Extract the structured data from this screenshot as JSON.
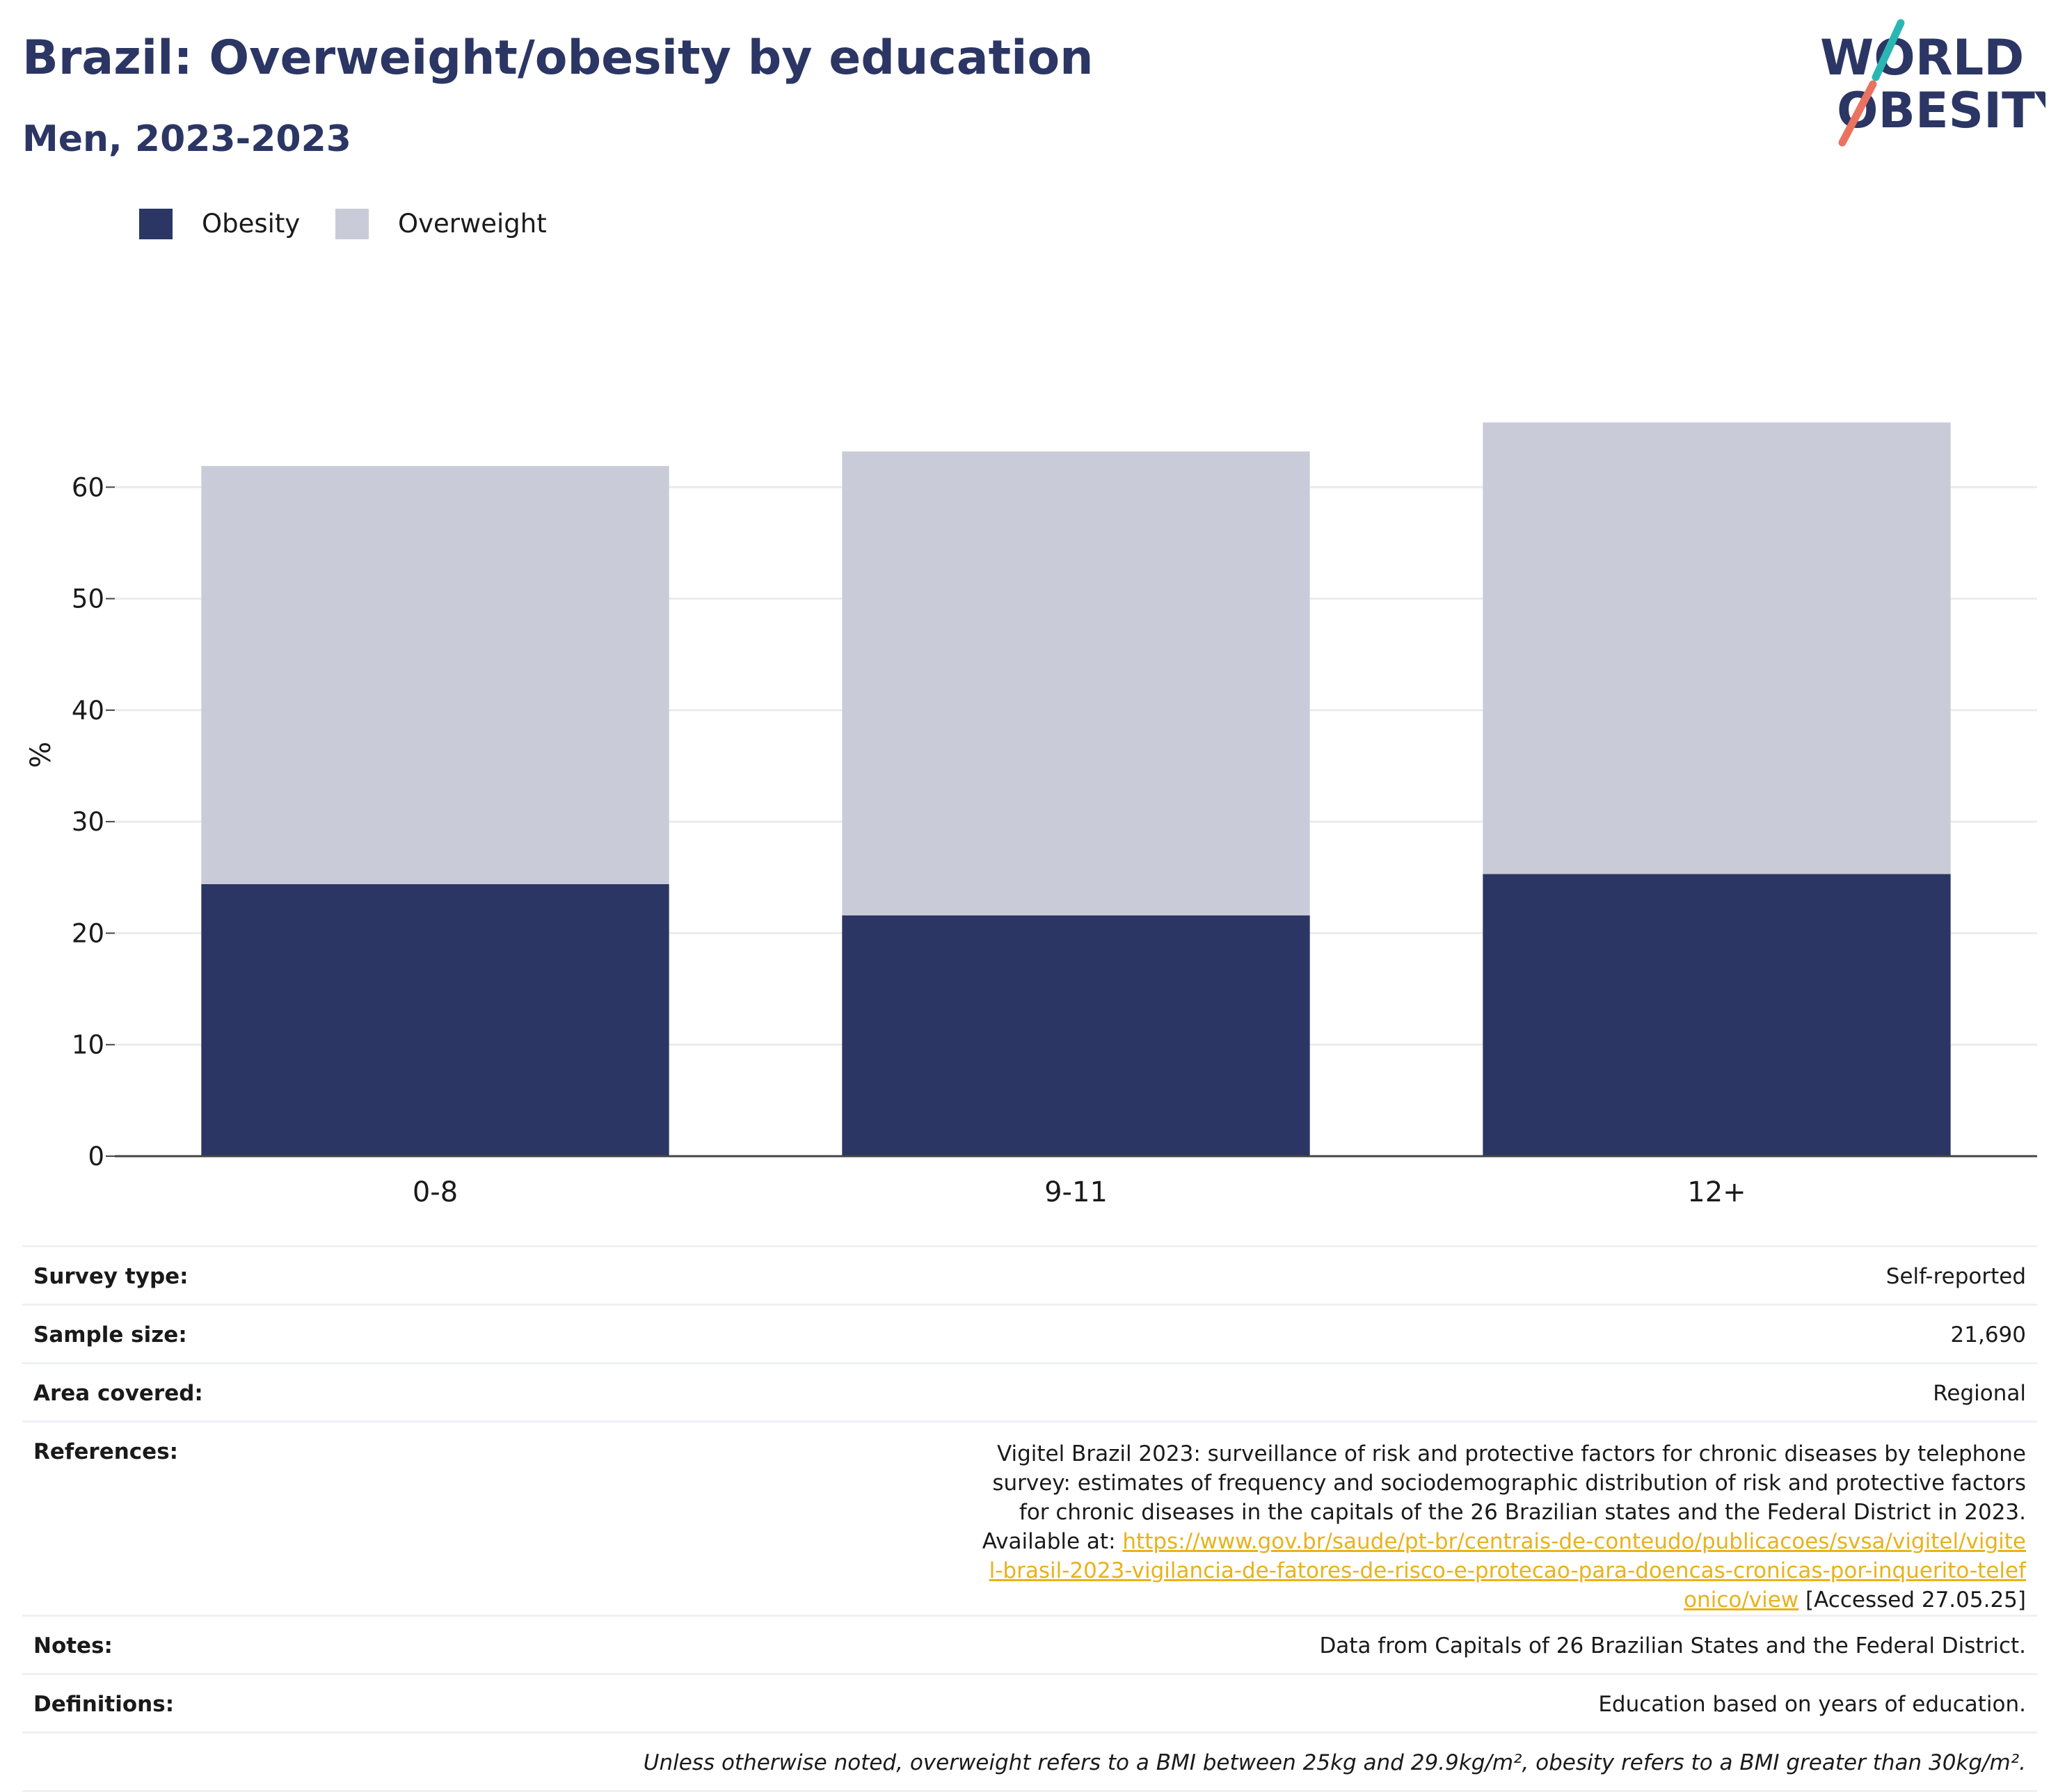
{
  "header": {
    "title": "Brazil: Overweight/obesity by education",
    "subtitle": "Men, 2023-2023"
  },
  "logo": {
    "line1": "WORLD",
    "line2": "OBESITY"
  },
  "colors": {
    "obesity": "#2b3664",
    "overweight": "#c9ccd8",
    "title": "#2b3664",
    "link": "#e8b21c",
    "logo_teal": "#2ab7b4",
    "logo_coral": "#e9735f"
  },
  "legend": {
    "items": [
      {
        "label": "Obesity",
        "color": "#2b3664"
      },
      {
        "label": "Overweight",
        "color": "#c9ccd8"
      }
    ],
    "position": "top-left"
  },
  "chart_data": {
    "type": "bar",
    "stacked": true,
    "categories": [
      "0-8",
      "9-11",
      "12+"
    ],
    "series": [
      {
        "name": "Obesity",
        "values": [
          24.4,
          21.6,
          25.3
        ]
      },
      {
        "name": "Overweight",
        "values": [
          37.5,
          41.6,
          40.5
        ]
      }
    ],
    "xlabel": "",
    "ylabel": "%",
    "ylim": [
      0,
      70
    ],
    "yticks": [
      0,
      10,
      20,
      30,
      40,
      50,
      60
    ],
    "grid": true
  },
  "info": {
    "survey_type_label": "Survey type:",
    "survey_type_value": "Self-reported",
    "sample_size_label": "Sample size:",
    "sample_size_value": "21,690",
    "area_label": "Area covered:",
    "area_value": "Regional",
    "references_label": "References:",
    "references_text": "Vigitel Brazil 2023: surveillance of risk and protective factors for chronic diseases by telephone survey: estimates of frequency and sociodemographic distribution of risk and protective factors for chronic diseases in the capitals of the 26 Brazilian states and the Federal District in 2023. Available at:",
    "references_link": "https://www.gov.br/saude/pt-br/centrais-de-conteudo/publicacoes/svsa/vigitel/vigitel-brasil-2023-vigilancia-de-fatores-de-risco-e-protecao-para-doencas-cronicas-por-inquerito-telefonico/view",
    "references_accessed": "[Accessed 27.05.25]",
    "notes_label": "Notes:",
    "notes_value": "Data from Capitals of 26 Brazilian States and the Federal District.",
    "definitions_label": "Definitions:",
    "definitions_value": "Education based on years of education.",
    "footnote": "Unless otherwise noted, overweight refers to a BMI between 25kg and 29.9kg/m², obesity refers to a BMI greater than 30kg/m²."
  }
}
